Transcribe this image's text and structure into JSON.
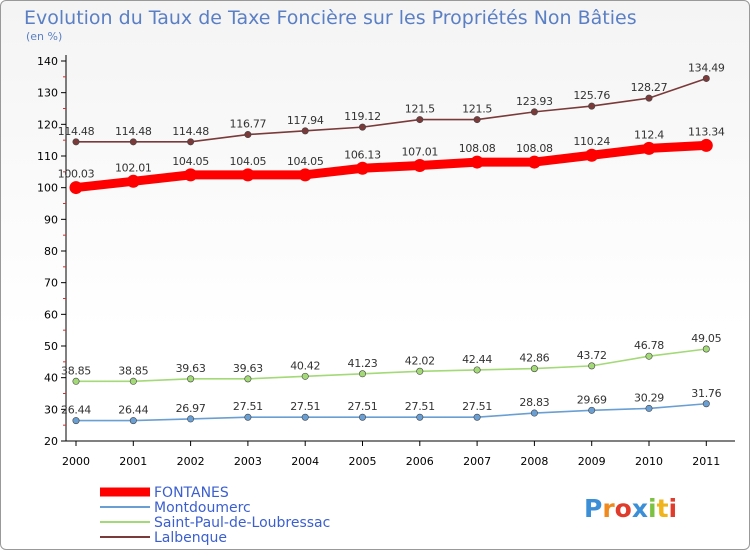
{
  "chart_data": {
    "type": "line",
    "title": "Evolution du Taux de Taxe Foncière sur les Propriétés Non Bâties",
    "subtitle": "(en %)",
    "x": [
      "2000",
      "2001",
      "2002",
      "2003",
      "2004",
      "2005",
      "2006",
      "2007",
      "2008",
      "2009",
      "2010",
      "2011"
    ],
    "ylim": [
      20,
      140
    ],
    "yticks": [
      20,
      30,
      40,
      50,
      60,
      70,
      80,
      90,
      100,
      110,
      120,
      130,
      140
    ],
    "grid": false,
    "legend_position": "bottom-left",
    "series": [
      {
        "name": "FONTANES",
        "color": "#ff0000",
        "values": [
          100.03,
          102.01,
          104.05,
          104.05,
          104.05,
          106.13,
          107.01,
          108.08,
          108.08,
          110.24,
          112.4,
          113.34
        ],
        "labels": [
          "100.03",
          "102.01",
          "104.05",
          "104.05",
          "104.05",
          "106.13",
          "107.01",
          "108.08",
          "108.08",
          "110.24",
          "112.4",
          "113.34"
        ]
      },
      {
        "name": "Montdoumerc",
        "color": "#6a9fd4",
        "values": [
          26.44,
          26.44,
          26.97,
          27.51,
          27.51,
          27.51,
          27.51,
          27.51,
          28.83,
          29.69,
          30.29,
          31.76
        ],
        "labels": [
          "26.44",
          "26.44",
          "26.97",
          "27.51",
          "27.51",
          "27.51",
          "27.51",
          "27.51",
          "28.83",
          "29.69",
          "30.29",
          "31.76"
        ]
      },
      {
        "name": "Saint-Paul-de-Loubressac",
        "color": "#a3d977",
        "values": [
          38.85,
          38.85,
          39.63,
          39.63,
          40.42,
          41.23,
          42.02,
          42.44,
          42.86,
          43.72,
          46.78,
          49.05
        ],
        "labels": [
          "38.85",
          "38.85",
          "39.63",
          "39.63",
          "40.42",
          "41.23",
          "42.02",
          "42.44",
          "42.86",
          "43.72",
          "46.78",
          "49.05"
        ]
      },
      {
        "name": "Lalbenque",
        "color": "#7a3a3a",
        "values": [
          114.48,
          114.48,
          114.48,
          116.77,
          117.94,
          119.12,
          121.5,
          121.5,
          123.93,
          125.76,
          128.27,
          134.49
        ],
        "labels": [
          "114.48",
          "114.48",
          "114.48",
          "116.77",
          "117.94",
          "119.12",
          "121.5",
          "121.5",
          "123.93",
          "125.76",
          "128.27",
          "134.49"
        ]
      }
    ]
  },
  "brand": {
    "text": "Proxiti"
  }
}
